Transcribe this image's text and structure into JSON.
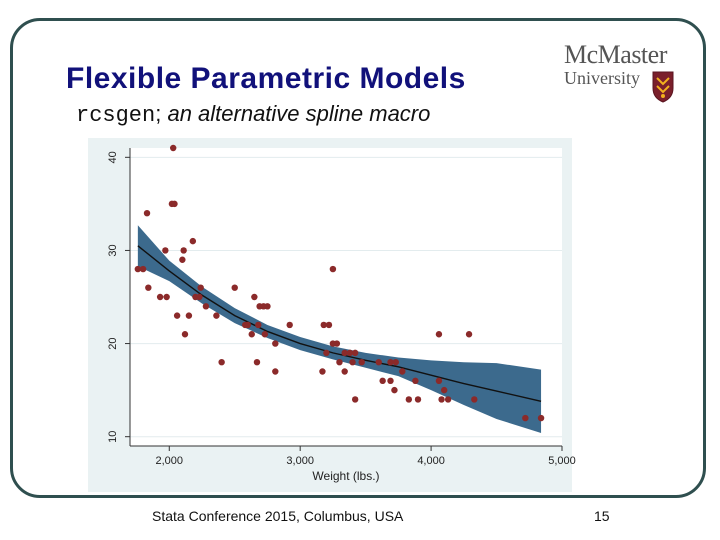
{
  "slide": {
    "title": "Flexible Parametric Models",
    "subtitle_code": "rcsgen",
    "subtitle_semicolon": ";",
    "subtitle_text": " an alternative spline macro",
    "footer": "Stata Conference 2015, Columbus, USA",
    "page_number": "15"
  },
  "logo": {
    "name": "McMaster",
    "sub": "University",
    "crest_icon": "university-crest-icon",
    "crest_color": "#7a1f2b",
    "crest_accent": "#f2b01e"
  },
  "chart_data": {
    "type": "scatter",
    "xlabel": "Weight (lbs.)",
    "ylabel": "",
    "xlim": [
      1700,
      5000
    ],
    "ylim": [
      9,
      41
    ],
    "xticks": [
      2000,
      3000,
      4000,
      5000
    ],
    "xtick_labels": [
      "2,000",
      "3,000",
      "4,000",
      "5,000"
    ],
    "yticks": [
      10,
      20,
      30,
      40
    ],
    "ytick_labels": [
      "10",
      "20",
      "30",
      "40"
    ],
    "grid": "horizontal",
    "colors": {
      "background": "#eaf2f3",
      "plot_bg": "#ffffff",
      "grid": "#e3ecee",
      "band": "#3c6a8d",
      "line": "#111111",
      "points": "#8b2a2a"
    },
    "points": [
      [
        1760,
        28
      ],
      [
        1800,
        28
      ],
      [
        1830,
        34
      ],
      [
        1840,
        26
      ],
      [
        1930,
        25
      ],
      [
        1970,
        30
      ],
      [
        1980,
        25
      ],
      [
        2020,
        35
      ],
      [
        2040,
        35
      ],
      [
        2030,
        41
      ],
      [
        2060,
        23
      ],
      [
        2100,
        29
      ],
      [
        2110,
        30
      ],
      [
        2120,
        21
      ],
      [
        2150,
        23
      ],
      [
        2180,
        31
      ],
      [
        2200,
        25
      ],
      [
        2230,
        25
      ],
      [
        2240,
        26
      ],
      [
        2280,
        24
      ],
      [
        2360,
        23
      ],
      [
        2400,
        18
      ],
      [
        2500,
        26
      ],
      [
        2580,
        22
      ],
      [
        2600,
        22
      ],
      [
        2630,
        21
      ],
      [
        2650,
        25
      ],
      [
        2670,
        18
      ],
      [
        2680,
        22
      ],
      [
        2690,
        24
      ],
      [
        2720,
        24
      ],
      [
        2730,
        21
      ],
      [
        2750,
        24
      ],
      [
        2810,
        17
      ],
      [
        2810,
        20
      ],
      [
        2920,
        22
      ],
      [
        3170,
        17
      ],
      [
        3180,
        22
      ],
      [
        3200,
        19
      ],
      [
        3220,
        22
      ],
      [
        3250,
        28
      ],
      [
        3250,
        20
      ],
      [
        3280,
        20
      ],
      [
        3300,
        18
      ],
      [
        3340,
        17
      ],
      [
        3340,
        19
      ],
      [
        3380,
        19
      ],
      [
        3400,
        18
      ],
      [
        3420,
        14
      ],
      [
        3420,
        19
      ],
      [
        3470,
        18
      ],
      [
        3600,
        18
      ],
      [
        3630,
        16
      ],
      [
        3690,
        16
      ],
      [
        3690,
        18
      ],
      [
        3720,
        15
      ],
      [
        3730,
        18
      ],
      [
        3780,
        17
      ],
      [
        3830,
        14
      ],
      [
        3880,
        16
      ],
      [
        3900,
        14
      ],
      [
        4060,
        16
      ],
      [
        4060,
        21
      ],
      [
        4080,
        14
      ],
      [
        4100,
        15
      ],
      [
        4130,
        14
      ],
      [
        4290,
        21
      ],
      [
        4330,
        14
      ],
      [
        4720,
        12
      ],
      [
        4840,
        12
      ]
    ],
    "fit": {
      "x": [
        1760,
        2000,
        2250,
        2500,
        2750,
        3000,
        3250,
        3500,
        3750,
        4000,
        4250,
        4500,
        4840
      ],
      "y": [
        30.5,
        27.8,
        25.2,
        23.0,
        21.3,
        20.0,
        19.0,
        18.2,
        17.5,
        16.6,
        15.7,
        14.9,
        13.8
      ],
      "lower": [
        28.3,
        26.7,
        24.3,
        22.2,
        20.6,
        19.3,
        18.3,
        17.4,
        16.5,
        15.0,
        13.4,
        11.9,
        10.4
      ],
      "upper": [
        32.7,
        28.9,
        26.1,
        23.8,
        22.0,
        20.7,
        19.7,
        19.0,
        18.5,
        18.2,
        18.0,
        17.9,
        17.2
      ]
    }
  }
}
